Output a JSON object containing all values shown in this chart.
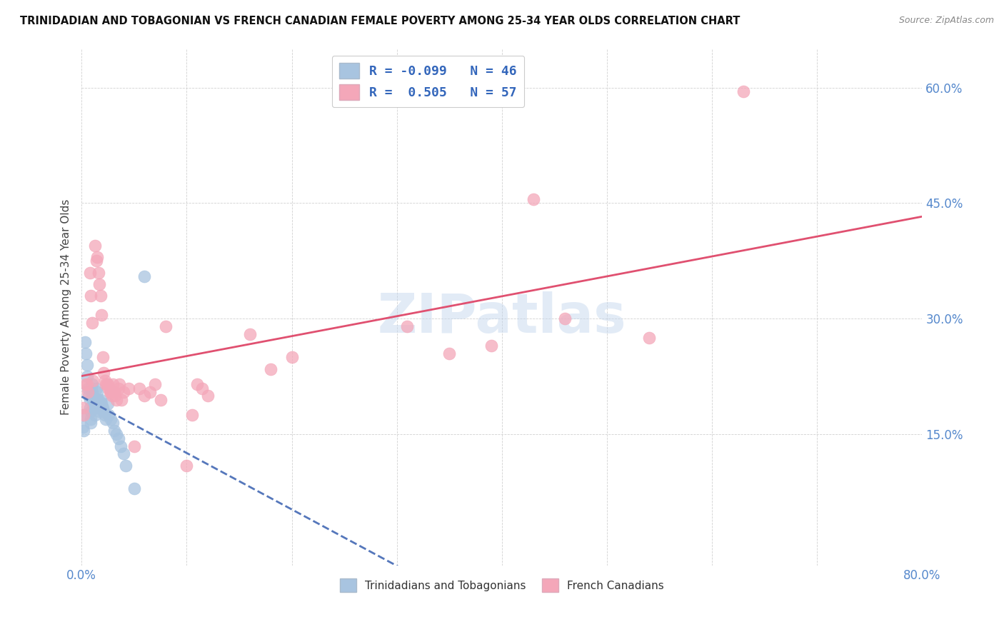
{
  "title": "TRINIDADIAN AND TOBAGONIAN VS FRENCH CANADIAN FEMALE POVERTY AMONG 25-34 YEAR OLDS CORRELATION CHART",
  "source": "Source: ZipAtlas.com",
  "ylabel": "Female Poverty Among 25-34 Year Olds",
  "xlim": [
    0,
    0.8
  ],
  "ylim": [
    -0.02,
    0.65
  ],
  "xticks": [
    0.0,
    0.1,
    0.2,
    0.3,
    0.4,
    0.5,
    0.6,
    0.7,
    0.8
  ],
  "xticklabels": [
    "0.0%",
    "",
    "",
    "",
    "",
    "",
    "",
    "",
    "80.0%"
  ],
  "ytick_positions": [
    0.15,
    0.3,
    0.45,
    0.6
  ],
  "ytick_labels": [
    "15.0%",
    "30.0%",
    "45.0%",
    "60.0%"
  ],
  "legend_r1": "R = -0.099",
  "legend_n1": "N = 46",
  "legend_r2": "R =  0.505",
  "legend_n2": "N = 57",
  "color_blue": "#a8c4e0",
  "color_pink": "#f4a7b9",
  "trendline_blue": "#5577bb",
  "trendline_pink": "#e05070",
  "blue_R": -0.099,
  "pink_R": 0.505,
  "blue_scatter_x": [
    0.001,
    0.001,
    0.002,
    0.003,
    0.004,
    0.005,
    0.005,
    0.006,
    0.007,
    0.008,
    0.008,
    0.009,
    0.009,
    0.009,
    0.01,
    0.01,
    0.011,
    0.011,
    0.012,
    0.012,
    0.013,
    0.013,
    0.014,
    0.015,
    0.015,
    0.016,
    0.016,
    0.017,
    0.018,
    0.019,
    0.02,
    0.021,
    0.022,
    0.023,
    0.025,
    0.026,
    0.028,
    0.03,
    0.031,
    0.033,
    0.035,
    0.037,
    0.04,
    0.042,
    0.05,
    0.06
  ],
  "blue_scatter_y": [
    0.175,
    0.16,
    0.155,
    0.27,
    0.255,
    0.24,
    0.225,
    0.21,
    0.2,
    0.195,
    0.185,
    0.18,
    0.17,
    0.165,
    0.215,
    0.205,
    0.2,
    0.195,
    0.195,
    0.185,
    0.185,
    0.175,
    0.21,
    0.205,
    0.195,
    0.195,
    0.185,
    0.18,
    0.195,
    0.19,
    0.185,
    0.18,
    0.175,
    0.17,
    0.19,
    0.175,
    0.17,
    0.165,
    0.155,
    0.15,
    0.145,
    0.135,
    0.125,
    0.11,
    0.08,
    0.355
  ],
  "pink_scatter_x": [
    0.001,
    0.002,
    0.004,
    0.005,
    0.006,
    0.008,
    0.009,
    0.01,
    0.011,
    0.013,
    0.014,
    0.015,
    0.016,
    0.017,
    0.018,
    0.019,
    0.02,
    0.021,
    0.022,
    0.023,
    0.024,
    0.025,
    0.026,
    0.027,
    0.028,
    0.029,
    0.03,
    0.031,
    0.032,
    0.033,
    0.035,
    0.036,
    0.038,
    0.04,
    0.045,
    0.05,
    0.055,
    0.06,
    0.065,
    0.07,
    0.075,
    0.08,
    0.1,
    0.105,
    0.11,
    0.115,
    0.12,
    0.16,
    0.18,
    0.2,
    0.31,
    0.35,
    0.39,
    0.43,
    0.46,
    0.54,
    0.63
  ],
  "pink_scatter_y": [
    0.185,
    0.175,
    0.215,
    0.215,
    0.205,
    0.36,
    0.33,
    0.295,
    0.22,
    0.395,
    0.375,
    0.38,
    0.36,
    0.345,
    0.33,
    0.305,
    0.25,
    0.23,
    0.22,
    0.215,
    0.215,
    0.215,
    0.21,
    0.205,
    0.205,
    0.2,
    0.215,
    0.205,
    0.2,
    0.195,
    0.21,
    0.215,
    0.195,
    0.205,
    0.21,
    0.135,
    0.21,
    0.2,
    0.205,
    0.215,
    0.195,
    0.29,
    0.11,
    0.175,
    0.215,
    0.21,
    0.2,
    0.28,
    0.235,
    0.25,
    0.29,
    0.255,
    0.265,
    0.455,
    0.3,
    0.275,
    0.595
  ]
}
